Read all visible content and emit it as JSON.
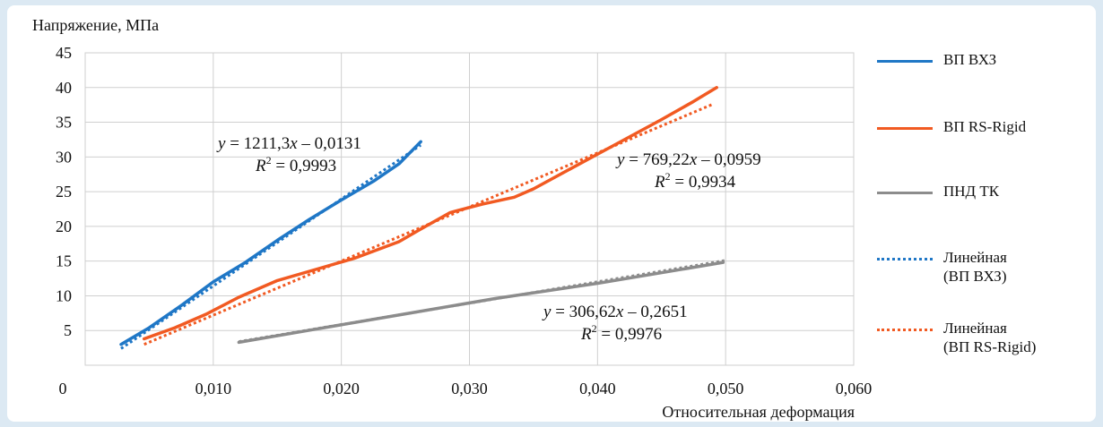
{
  "chart_data": {
    "type": "line",
    "ylabel": "Напряжение, МПа",
    "xlabel": "Относительная деформация",
    "xlim": [
      0,
      0.06
    ],
    "ylim": [
      0,
      45
    ],
    "x_ticks": [
      "0",
      "0,010",
      "0,020",
      "0,030",
      "0,040",
      "0,050",
      "0,060"
    ],
    "y_ticks": [
      "5",
      "10",
      "15",
      "20",
      "25",
      "30",
      "35",
      "40",
      "45"
    ],
    "grid": "vertical and horizontal",
    "legend_position": "right",
    "series": [
      {
        "name": "ВП ВХЗ",
        "color": "#1f77c6",
        "style": "solid",
        "points": [
          [
            0.0028,
            3.0
          ],
          [
            0.005,
            5.4
          ],
          [
            0.0075,
            8.6
          ],
          [
            0.01,
            12.0
          ],
          [
            0.0125,
            14.8
          ],
          [
            0.015,
            18.0
          ],
          [
            0.0175,
            21.0
          ],
          [
            0.02,
            23.8
          ],
          [
            0.0225,
            26.5
          ],
          [
            0.0245,
            29.0
          ],
          [
            0.0262,
            32.2
          ]
        ]
      },
      {
        "name": "ВП RS-Rigid",
        "color": "#f15a22",
        "style": "solid",
        "points": [
          [
            0.0046,
            3.8
          ],
          [
            0.007,
            5.4
          ],
          [
            0.0095,
            7.4
          ],
          [
            0.012,
            9.8
          ],
          [
            0.015,
            12.2
          ],
          [
            0.018,
            13.8
          ],
          [
            0.021,
            15.4
          ],
          [
            0.0245,
            17.8
          ],
          [
            0.026,
            19.4
          ],
          [
            0.0285,
            22.0
          ],
          [
            0.031,
            23.2
          ],
          [
            0.0335,
            24.2
          ],
          [
            0.035,
            25.4
          ],
          [
            0.038,
            28.4
          ],
          [
            0.041,
            31.4
          ],
          [
            0.043,
            33.4
          ],
          [
            0.045,
            35.4
          ],
          [
            0.0475,
            38.0
          ],
          [
            0.0493,
            40.0
          ]
        ]
      },
      {
        "name": "ПНД ТК",
        "color": "#8c8c8c",
        "style": "solid",
        "points": [
          [
            0.012,
            3.3
          ],
          [
            0.018,
            5.2
          ],
          [
            0.025,
            7.4
          ],
          [
            0.032,
            9.6
          ],
          [
            0.04,
            11.8
          ],
          [
            0.0498,
            14.8
          ]
        ]
      },
      {
        "name": "Линейная\n(ВП ВХЗ)",
        "color": "#1f77c6",
        "style": "dotted",
        "points": [
          [
            0.0028,
            2.4
          ],
          [
            0.0262,
            31.7
          ]
        ]
      },
      {
        "name": "Линейная\n(ВП RS-Rigid)",
        "color": "#f15a22",
        "style": "dotted",
        "points": [
          [
            0.0046,
            3.0
          ],
          [
            0.049,
            37.6
          ]
        ]
      },
      {
        "name": "",
        "color": "#8c8c8c",
        "style": "dotted",
        "points": [
          [
            0.012,
            3.4
          ],
          [
            0.05,
            15.1
          ]
        ]
      }
    ],
    "annotations": [
      {
        "equation": "y = 1211,3x – 0,0131",
        "r2": "R2 = 0,9993"
      },
      {
        "equation": "y = 769,22x – 0,0959",
        "r2": "R2 = 0,9934"
      },
      {
        "equation": "y = 306,62x – 0,2651",
        "r2": "R2 = 0,9976"
      }
    ]
  }
}
